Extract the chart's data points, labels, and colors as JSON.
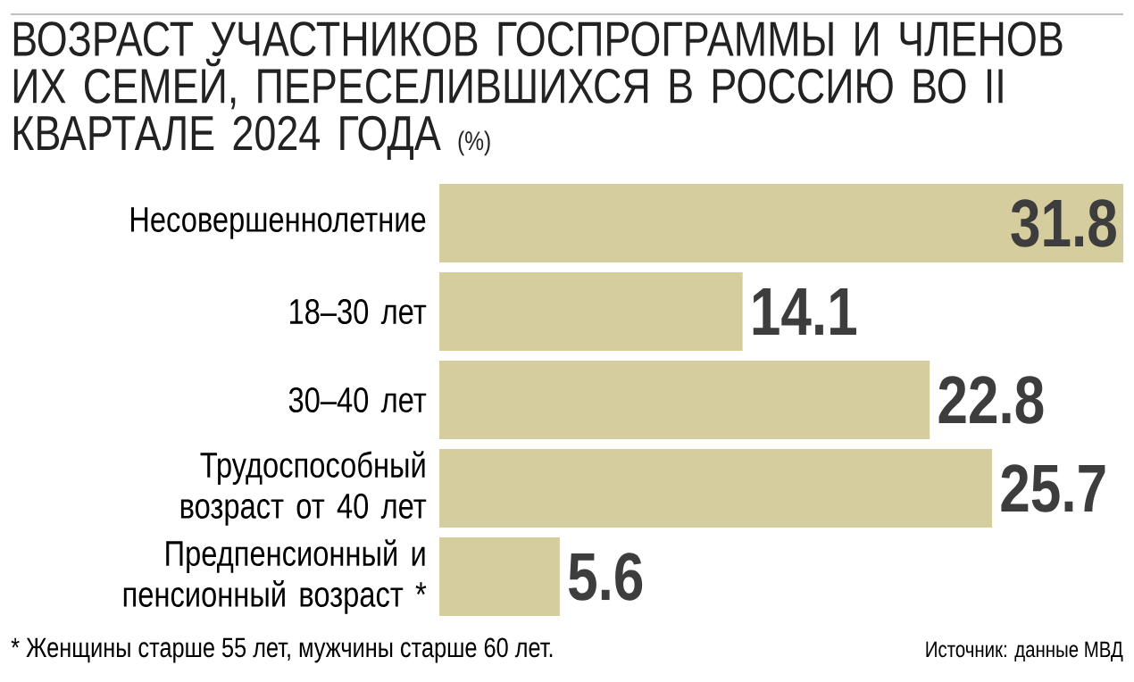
{
  "chart_data": {
    "type": "bar",
    "orientation": "horizontal",
    "title": "ВОЗРАСТ УЧАСТНИКОВ ГОСПРОГРАММЫ И ЧЛЕНОВ ИХ СЕМЕЙ, ПЕРЕСЕЛИВШИХСЯ В РОССИЮ ВО II КВАРТАЛЕ 2024 ГОДА",
    "subtitle": "(%)",
    "categories": [
      "Несовершеннолетние",
      "18–30 лет",
      "30–40 лет",
      "Трудоспособный возраст от 40 лет",
      "Предпенсионный и пенсионный возраст *"
    ],
    "values": [
      31.8,
      14.1,
      22.8,
      25.7,
      5.6
    ],
    "color": "#d5cd9d",
    "data_labels": true,
    "annotations": [
      "* Женщины старше 55 лет, мужчины старше 60 лет.",
      "Источник: данные МВД"
    ]
  }
}
